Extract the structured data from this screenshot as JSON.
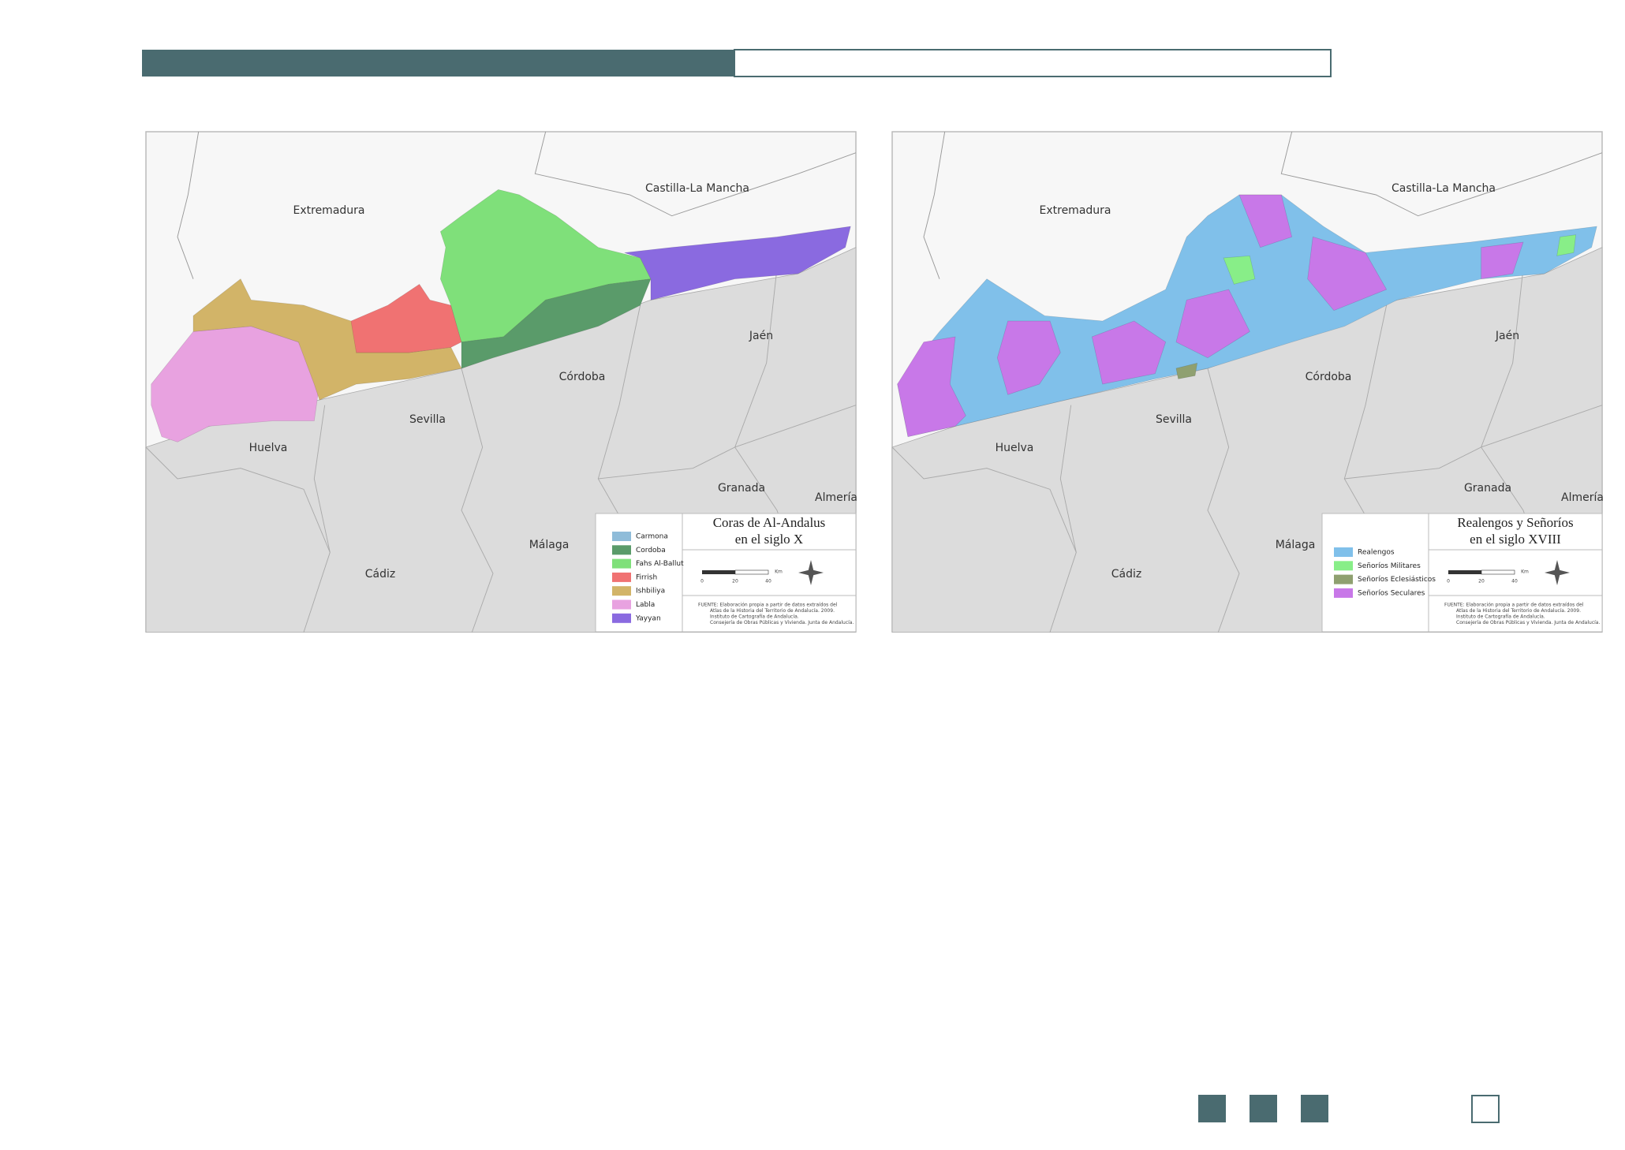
{
  "maps": [
    {
      "title_lines": [
        "Coras de Al-Andalus",
        "en el siglo X"
      ],
      "places": [
        "Extremadura",
        "Castilla-La Mancha",
        "Jaén",
        "Córdoba",
        "Sevilla",
        "Huelva",
        "Granada",
        "Almería",
        "Málaga",
        "Cádiz"
      ],
      "legend": [
        {
          "label": "Carmona",
          "color": "#8fbcd9"
        },
        {
          "label": "Cordoba",
          "color": "#5a9b6a"
        },
        {
          "label": "Fahs Al-Ballut",
          "color": "#7fe07a"
        },
        {
          "label": "Firrish",
          "color": "#f07272"
        },
        {
          "label": "Ishbiliya",
          "color": "#d2b468"
        },
        {
          "label": "Labla",
          "color": "#e8a2e0"
        },
        {
          "label": "Yayyan",
          "color": "#8a6ae0"
        }
      ],
      "scale": [
        "0",
        "20",
        "40",
        "Km"
      ],
      "source": [
        "FUENTE: Elaboración propia a partir de datos extraídos del",
        "Atlas de la Historia del Territorio de Andalucía. 2009.",
        "Instituto de Cartografía de Andalucía.",
        "Consejería de Obras Públicas y Vivienda. Junta de Andalucía."
      ]
    },
    {
      "title_lines": [
        "Realengos y Señoríos",
        "en el siglo XVIII"
      ],
      "places": [
        "Extremadura",
        "Castilla-La Mancha",
        "Jaén",
        "Córdoba",
        "Sevilla",
        "Huelva",
        "Granada",
        "Almería",
        "Málaga",
        "Cádiz"
      ],
      "legend": [
        {
          "label": "Realengos",
          "color": "#80c0ea"
        },
        {
          "label": "Señoríos Militares",
          "color": "#88ee88"
        },
        {
          "label": "Señoríos Eclesiásticos",
          "color": "#8fa070"
        },
        {
          "label": "Señoríos Seculares",
          "color": "#c878e8"
        }
      ],
      "scale": [
        "0",
        "20",
        "40",
        "Km"
      ],
      "source": [
        "FUENTE: Elaboración propia a partir de datos extraídos del",
        "Atlas de la Historia del Territorio de Andalucía. 2009.",
        "Instituto de Cartografía de Andalucía.",
        "Consejería de Obras Públicas y Vivienda. Junta de Andalucía."
      ]
    }
  ]
}
